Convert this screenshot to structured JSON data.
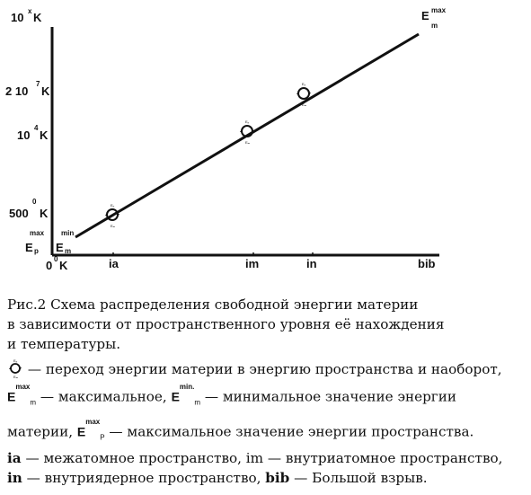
{
  "diagram": {
    "y_labels": {
      "top_base": "10",
      "top_exp": "x",
      "top_unit": "K",
      "l2_base": "2 10",
      "l2_exp": "7",
      "l2_unit": "K",
      "l3_base": "10",
      "l3_exp": "4",
      "l3_unit": "K",
      "l4_exp": "0",
      "l4_base": "500",
      "l4_unit": "K",
      "origin_base": "0",
      "origin_exp": "0",
      "origin_unit": "K"
    },
    "x_labels": [
      "ia",
      "im",
      "in",
      "bib"
    ],
    "axis_marks": {
      "ep_sup": "max",
      "ep_base": "E",
      "ep_sub": "p",
      "em_sup": "min",
      "em_base": "E",
      "em_sub": "m",
      "emax_base": "E",
      "emax_sup": "max",
      "emax_sub": "m"
    },
    "cycle_labels": {
      "top": "Eₚ",
      "bottom": "Eₘ"
    }
  },
  "caption": {
    "line1": "Рис.2 Схема распределения свободной энергии материи",
    "line2": "в зависимости от пространственного уровня её нахождения",
    "line3": "и температуры.",
    "line4_text": " — переход энергии материи в энергию пространства и наоборот,",
    "sym_emax_base": "E",
    "sym_emax_sup": "max",
    "sym_emax_sub": "m",
    "line5_a": " — максимальное, ",
    "sym_emin_base": "E",
    "sym_emin_sup": "min.",
    "sym_emin_sub": "m",
    "line5_b": " — минимальное значение энергии",
    "line6_a": "материи, ",
    "sym_ep_base": "E",
    "sym_ep_sup": "max",
    "sym_ep_sub": "P",
    "line6_b": " — максимальное значение энергии пространства.",
    "line7_ia": "ia",
    "line7_a": " — межатомное пространство, im — внутриатомное пространство,",
    "line8_in": "in",
    "line8_a": " — внутриядерное пространство, ",
    "line8_bib": "bib",
    "line8_b": " — Большой взрыв."
  }
}
